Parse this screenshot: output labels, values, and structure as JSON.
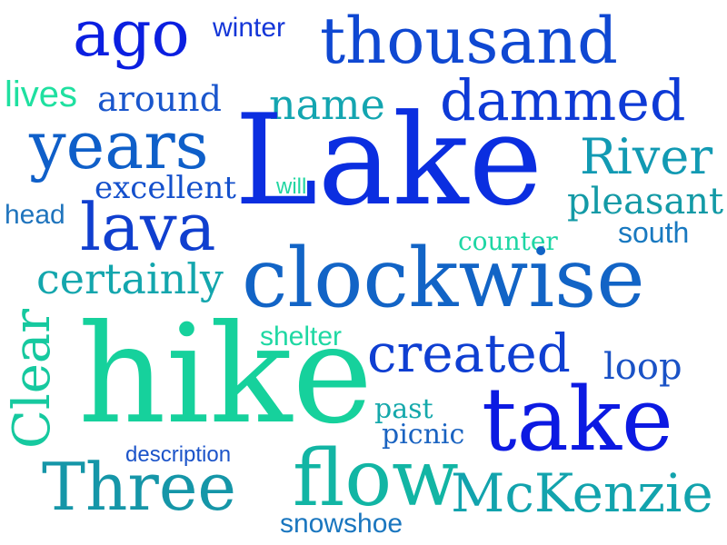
{
  "words": {
    "ago": {
      "text": "ago",
      "color": "#0b1fe0"
    },
    "winter": {
      "text": "winter",
      "color": "#1436d8"
    },
    "thousand": {
      "text": "thousand",
      "color": "#0f48d2"
    },
    "lives": {
      "text": "lives",
      "color": "#1fe0a0"
    },
    "around": {
      "text": "around",
      "color": "#1a56cc"
    },
    "name": {
      "text": "name",
      "color": "#13a5b0"
    },
    "dammed": {
      "text": "dammed",
      "color": "#0e3ad6"
    },
    "years": {
      "text": "years",
      "color": "#0f5fc9"
    },
    "lake": {
      "text": "Lake",
      "color": "#0b2ee0"
    },
    "river": {
      "text": "River",
      "color": "#129ab3"
    },
    "excellent": {
      "text": "excellent",
      "color": "#1450cc"
    },
    "will": {
      "text": "will",
      "color": "#22d6a2"
    },
    "head": {
      "text": "head",
      "color": "#1f74bd"
    },
    "lava": {
      "text": "lava",
      "color": "#103fcf"
    },
    "pleasant": {
      "text": "pleasant",
      "color": "#139aa6"
    },
    "counter": {
      "text": "counter",
      "color": "#1ed6a4"
    },
    "south": {
      "text": "south",
      "color": "#1979c0"
    },
    "certainly": {
      "text": "certainly",
      "color": "#13a6ad"
    },
    "clockwise": {
      "text": "clockwise",
      "color": "#1264c6"
    },
    "clear": {
      "text": "Clear",
      "color": "#16c99f"
    },
    "shelter": {
      "text": "shelter",
      "color": "#1fd8a3"
    },
    "created": {
      "text": "created",
      "color": "#0f3fd2"
    },
    "loop": {
      "text": "loop",
      "color": "#1a52c6"
    },
    "hike": {
      "text": "hike",
      "color": "#16d19c"
    },
    "past": {
      "text": "past",
      "color": "#15a8ab"
    },
    "take": {
      "text": "take",
      "color": "#0c1ae2"
    },
    "picnic": {
      "text": "picnic",
      "color": "#1a63c1"
    },
    "description": {
      "text": "description",
      "color": "#1c54c9"
    },
    "three": {
      "text": "Three",
      "color": "#1596a8"
    },
    "flow": {
      "text": "flow",
      "color": "#12b5a4"
    },
    "mckenzie": {
      "text": "McKenzie",
      "color": "#12a3ad"
    },
    "snowshoe": {
      "text": "snowshoe",
      "color": "#1a76bf"
    }
  }
}
